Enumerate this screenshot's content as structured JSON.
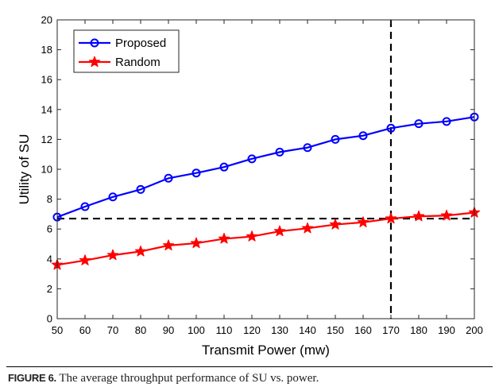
{
  "chart_data": {
    "type": "line",
    "title": "",
    "xlabel": "Transmit Power (mw)",
    "ylabel": "Utility of SU",
    "x": [
      50,
      60,
      70,
      80,
      90,
      100,
      110,
      120,
      130,
      140,
      150,
      160,
      170,
      180,
      190,
      200
    ],
    "xlim": [
      50,
      200
    ],
    "ylim": [
      0,
      20
    ],
    "xticks": [
      "50",
      "60",
      "70",
      "80",
      "90",
      "100",
      "110",
      "120",
      "130",
      "140",
      "150",
      "160",
      "170",
      "180",
      "190",
      "200"
    ],
    "yticks": [
      "0",
      "2",
      "4",
      "6",
      "8",
      "10",
      "12",
      "14",
      "16",
      "18",
      "20"
    ],
    "legend_position": "top-left",
    "series": [
      {
        "name": "Proposed",
        "color": "#0000ff",
        "marker": "circle",
        "values": [
          6.8,
          7.5,
          8.15,
          8.65,
          9.4,
          9.75,
          10.15,
          10.7,
          11.15,
          11.45,
          12.0,
          12.25,
          12.75,
          13.05,
          13.2,
          13.5
        ]
      },
      {
        "name": "Random",
        "color": "#ff0000",
        "marker": "star",
        "values": [
          3.6,
          3.9,
          4.25,
          4.5,
          4.9,
          5.05,
          5.35,
          5.5,
          5.85,
          6.05,
          6.3,
          6.45,
          6.7,
          6.85,
          6.9,
          7.1
        ]
      }
    ],
    "reference_lines": [
      {
        "orientation": "horizontal",
        "value": 6.7,
        "style": "dashed",
        "color": "#000000"
      },
      {
        "orientation": "vertical",
        "value": 170,
        "style": "dashed",
        "color": "#000000"
      }
    ]
  },
  "caption": {
    "label": "FIGURE 6.",
    "text": " The average throughput performance of SU vs. power."
  }
}
